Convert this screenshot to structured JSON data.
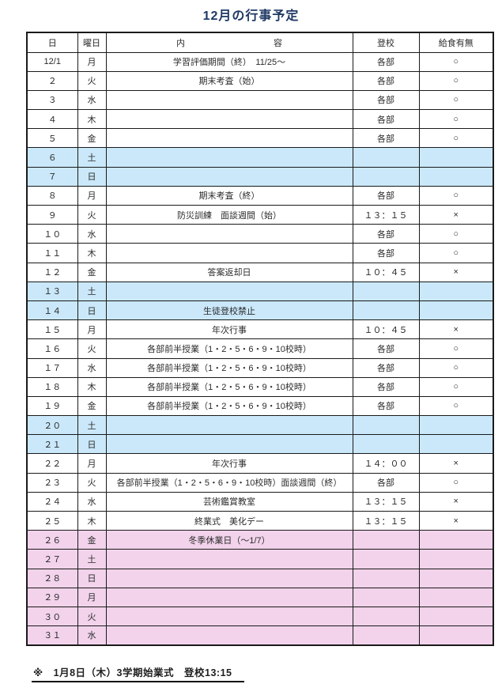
{
  "title": "12月の行事予定",
  "table": {
    "headers": {
      "day": "日",
      "weekday": "曜日",
      "content_left": "内",
      "content_right": "容",
      "arrival": "登校",
      "lunch": "給食有無"
    },
    "rows": [
      {
        "day": "12/1",
        "weekday": "月",
        "content": "学習評価期間（終）　11/25～",
        "arrival": "各部",
        "lunch": "○",
        "type": "plain"
      },
      {
        "day": "２",
        "weekday": "火",
        "content": "期末考査（始）",
        "arrival": "各部",
        "lunch": "○",
        "type": "plain"
      },
      {
        "day": "３",
        "weekday": "水",
        "content": "",
        "arrival": "各部",
        "lunch": "○",
        "type": "plain"
      },
      {
        "day": "４",
        "weekday": "木",
        "content": "",
        "arrival": "各部",
        "lunch": "○",
        "type": "plain"
      },
      {
        "day": "５",
        "weekday": "金",
        "content": "",
        "arrival": "各部",
        "lunch": "○",
        "type": "plain"
      },
      {
        "day": "６",
        "weekday": "土",
        "content": "",
        "arrival": "",
        "lunch": "",
        "type": "weekend"
      },
      {
        "day": "７",
        "weekday": "日",
        "content": "",
        "arrival": "",
        "lunch": "",
        "type": "weekend"
      },
      {
        "day": "８",
        "weekday": "月",
        "content": "期末考査（終）",
        "arrival": "各部",
        "lunch": "○",
        "type": "plain"
      },
      {
        "day": "９",
        "weekday": "火",
        "content": "防災訓練　面談週間（始）",
        "arrival": "１３：１５",
        "lunch": "×",
        "type": "plain"
      },
      {
        "day": "１０",
        "weekday": "水",
        "content": "",
        "arrival": "各部",
        "lunch": "○",
        "type": "plain"
      },
      {
        "day": "１１",
        "weekday": "木",
        "content": "",
        "arrival": "各部",
        "lunch": "○",
        "type": "plain"
      },
      {
        "day": "１２",
        "weekday": "金",
        "content": "答案返却日",
        "arrival": "１０：４５",
        "lunch": "×",
        "type": "plain"
      },
      {
        "day": "１３",
        "weekday": "土",
        "content": "",
        "arrival": "",
        "lunch": "",
        "type": "weekend"
      },
      {
        "day": "１４",
        "weekday": "日",
        "content": "生徒登校禁止",
        "arrival": "",
        "lunch": "",
        "type": "weekend"
      },
      {
        "day": "１５",
        "weekday": "月",
        "content": "年次行事",
        "arrival": "１０：４５",
        "lunch": "×",
        "type": "plain"
      },
      {
        "day": "１６",
        "weekday": "火",
        "content": "各部前半授業（1・2・5・6・9・10校時）",
        "arrival": "各部",
        "lunch": "○",
        "type": "plain"
      },
      {
        "day": "１７",
        "weekday": "水",
        "content": "各部前半授業（1・2・5・6・9・10校時）",
        "arrival": "各部",
        "lunch": "○",
        "type": "plain"
      },
      {
        "day": "１８",
        "weekday": "木",
        "content": "各部前半授業（1・2・5・6・9・10校時）",
        "arrival": "各部",
        "lunch": "○",
        "type": "plain"
      },
      {
        "day": "１９",
        "weekday": "金",
        "content": "各部前半授業（1・2・5・6・9・10校時）",
        "arrival": "各部",
        "lunch": "○",
        "type": "plain"
      },
      {
        "day": "２０",
        "weekday": "土",
        "content": "",
        "arrival": "",
        "lunch": "",
        "type": "weekend"
      },
      {
        "day": "２１",
        "weekday": "日",
        "content": "",
        "arrival": "",
        "lunch": "",
        "type": "weekend"
      },
      {
        "day": "２２",
        "weekday": "月",
        "content": "年次行事",
        "arrival": "１４：００",
        "lunch": "×",
        "type": "plain"
      },
      {
        "day": "２３",
        "weekday": "火",
        "content": "各部前半授業（1・2・5・6・9・10校時）面談週間（終）",
        "arrival": "各部",
        "lunch": "○",
        "type": "plain"
      },
      {
        "day": "２４",
        "weekday": "水",
        "content": "芸術鑑賞教室",
        "arrival": "１３：１５",
        "lunch": "×",
        "type": "plain"
      },
      {
        "day": "２５",
        "weekday": "木",
        "content": "終業式　美化デー",
        "arrival": "１３：１５",
        "lunch": "×",
        "type": "plain"
      },
      {
        "day": "２６",
        "weekday": "金",
        "content": "冬季休業日（～1/7）",
        "arrival": "",
        "lunch": "",
        "type": "break"
      },
      {
        "day": "２７",
        "weekday": "土",
        "content": "",
        "arrival": "",
        "lunch": "",
        "type": "break"
      },
      {
        "day": "２８",
        "weekday": "日",
        "content": "",
        "arrival": "",
        "lunch": "",
        "type": "break"
      },
      {
        "day": "２９",
        "weekday": "月",
        "content": "",
        "arrival": "",
        "lunch": "",
        "type": "break"
      },
      {
        "day": "３０",
        "weekday": "火",
        "content": "",
        "arrival": "",
        "lunch": "",
        "type": "break"
      },
      {
        "day": "３１",
        "weekday": "水",
        "content": "",
        "arrival": "",
        "lunch": "",
        "type": "break"
      }
    ]
  },
  "footnote": "※　1月8日（木）3学期始業式　登校13:15",
  "colors": {
    "title_text": "#1f3864",
    "weekend_row_bg": "#cae8fa",
    "winter_break_row_bg": "#f2d3eb",
    "table_border": "#1a1a1a",
    "body_text": "#2b2b2b"
  }
}
